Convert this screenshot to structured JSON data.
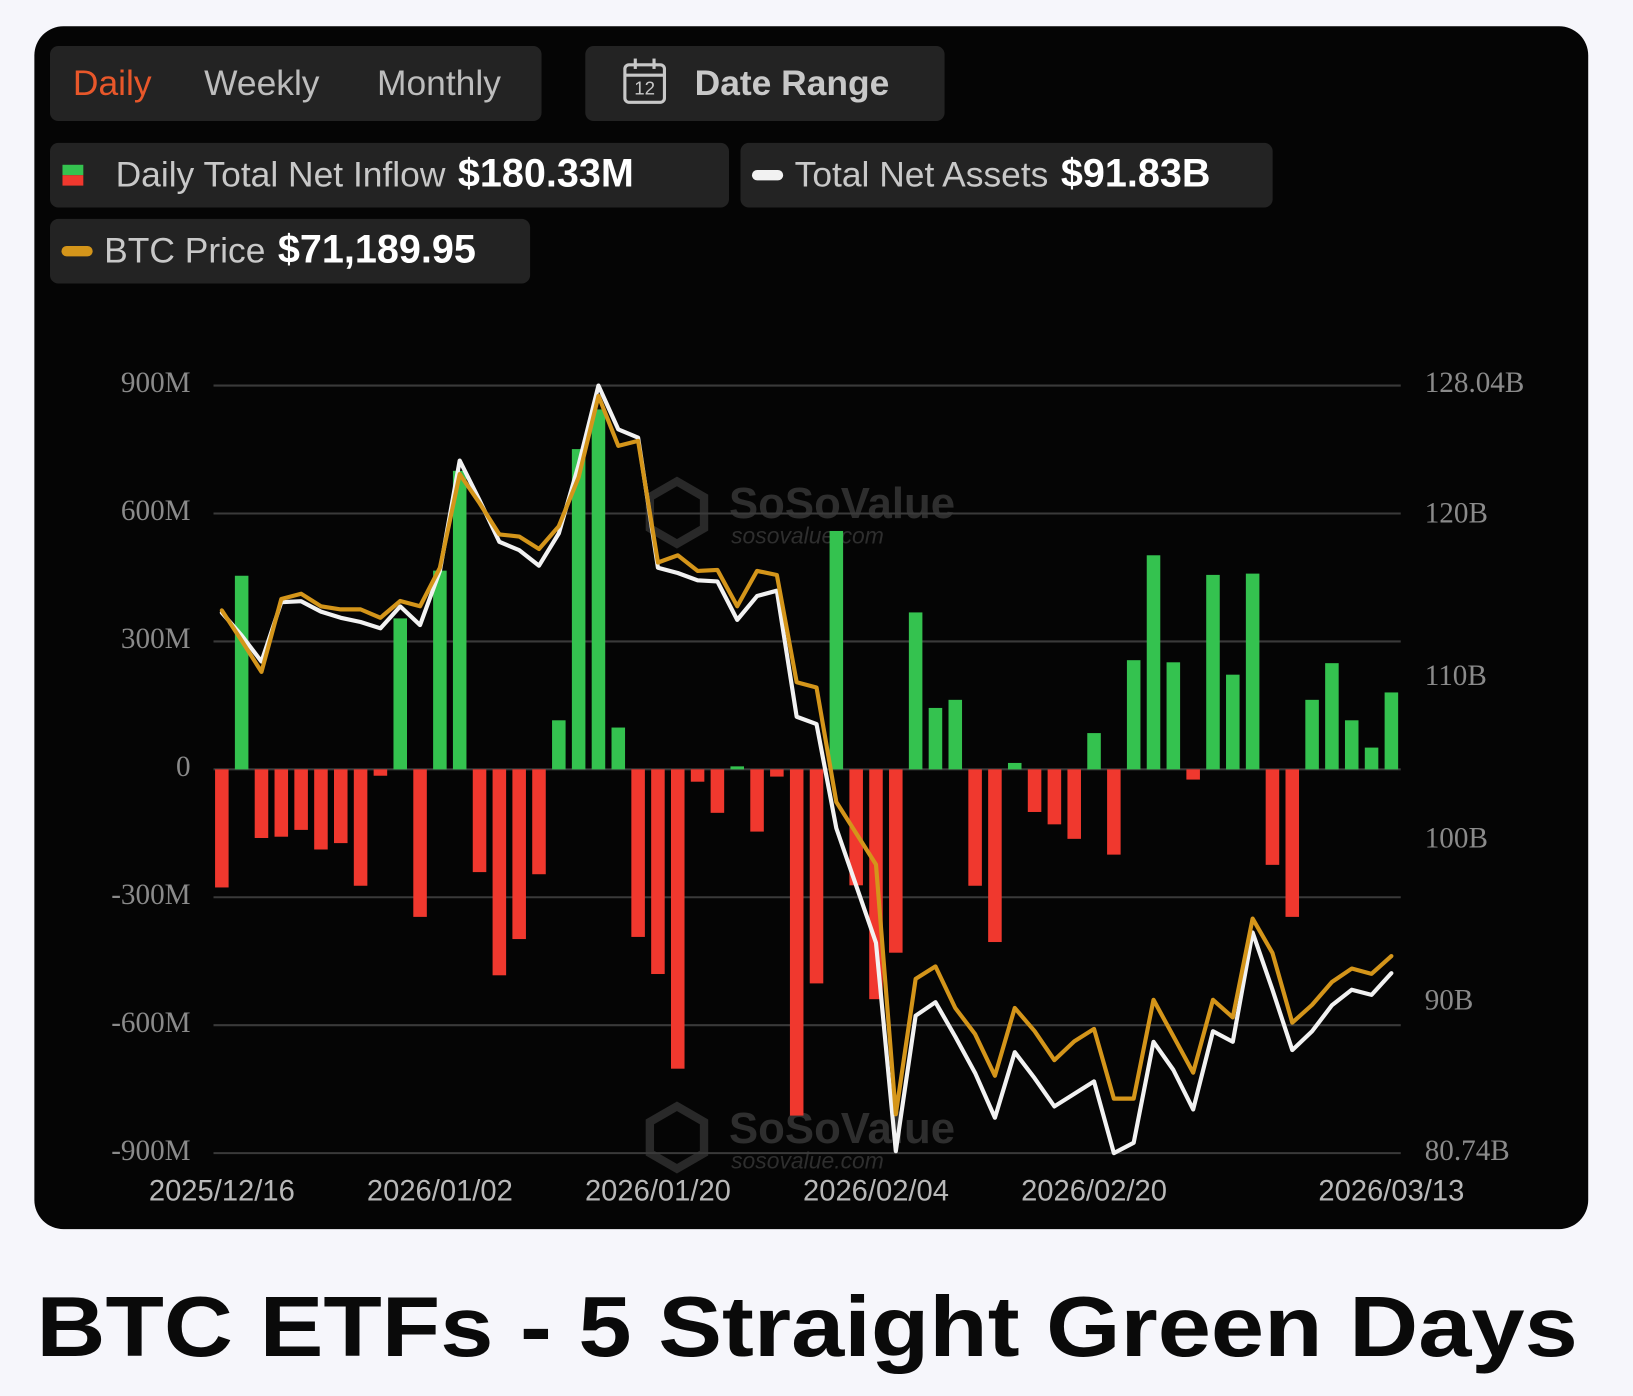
{
  "tabs": [
    "Daily",
    "Weekly",
    "Monthly"
  ],
  "active_tab": 0,
  "date_range": {
    "icon_text": "12",
    "label": "Date Range"
  },
  "watermark": {
    "brand": "SoSoValue",
    "url": "sosovalue.com"
  },
  "caption": "BTC ETFs - 5 Straight Green Days",
  "chart_data": {
    "type": "bar",
    "categories": [
      "2025/12/16",
      null,
      null,
      null,
      null,
      null,
      null,
      null,
      null,
      null,
      null,
      "2026/01/02",
      null,
      null,
      null,
      null,
      null,
      null,
      null,
      null,
      null,
      null,
      "2026/01/20",
      null,
      null,
      null,
      null,
      null,
      null,
      null,
      null,
      null,
      null,
      "2026/02/04",
      null,
      null,
      null,
      null,
      null,
      null,
      null,
      null,
      null,
      null,
      "2026/02/20",
      null,
      null,
      null,
      null,
      null,
      null,
      null,
      null,
      null,
      null,
      null,
      null,
      null,
      null,
      "2026/03/13"
    ],
    "series": [
      {
        "name": "Daily Total Net Inflow",
        "type": "bar",
        "color": "#34c24f",
        "negative_color": "#f0382e",
        "current_label": "$180.33M",
        "values": [
          -277,
          454,
          -161,
          -158,
          -142,
          -188,
          -173,
          -273,
          -15,
          354,
          -346,
          466,
          700,
          -241,
          -483,
          -398,
          -246,
          115,
          751,
          844,
          98,
          -393,
          -480,
          -702,
          -29,
          -102,
          7,
          -146,
          -17,
          -812,
          -502,
          559,
          -272,
          -539,
          -430,
          368,
          144,
          163,
          -273,
          -405,
          15,
          -100,
          -129,
          -163,
          85,
          -200,
          256,
          502,
          251,
          -24,
          456,
          222,
          459,
          -224,
          -346,
          163,
          249,
          115,
          51,
          180.33
        ]
      },
      {
        "name": "Total Net Assets",
        "type": "line",
        "axis": "y2",
        "color": "#f2f2f2",
        "current_label": "$91.83B",
        "values": [
          114.05,
          112.64,
          111.03,
          114.69,
          114.75,
          114.11,
          113.73,
          113.47,
          113.08,
          114.43,
          113.28,
          116.62,
          123.42,
          120.98,
          118.41,
          117.9,
          116.94,
          118.93,
          123.16,
          128.04,
          125.34,
          124.83,
          116.81,
          116.49,
          116.04,
          115.97,
          113.6,
          115.07,
          115.4,
          107.63,
          107.18,
          100.76,
          97.23,
          93.7,
          80.86,
          89.21,
          90.04,
          87.92,
          85.68,
          82.92,
          86.96,
          85.36,
          83.62,
          84.39,
          85.16,
          80.74,
          81.38,
          87.6,
          85.87,
          83.43,
          88.25,
          87.6,
          94.34,
          90.81,
          87.09,
          88.25,
          89.85,
          90.81,
          90.49,
          91.83
        ]
      },
      {
        "name": "BTC Price",
        "type": "line",
        "axis": "y3",
        "color": "#d4951a",
        "current_label": "$71,189.95",
        "values": [
          88890,
          87340,
          85740,
          89470,
          89740,
          89100,
          88940,
          88940,
          88510,
          89370,
          89100,
          91070,
          95870,
          94380,
          92780,
          92670,
          92030,
          93200,
          95710,
          99870,
          97310,
          97570,
          91340,
          91710,
          90910,
          90960,
          89100,
          90910,
          90700,
          85210,
          84940,
          79080,
          77480,
          75880,
          63090,
          70020,
          70660,
          68530,
          67190,
          65060,
          68530,
          67350,
          65860,
          66820,
          67460,
          63890,
          63890,
          68950,
          67090,
          65220,
          68950,
          68050,
          73110,
          71350,
          67780,
          68690,
          69860,
          70550,
          70280,
          71189.95
        ]
      }
    ],
    "ylim": [
      -900,
      900
    ],
    "yticks": [
      {
        "value": -900,
        "label": "-900M"
      },
      {
        "value": -600,
        "label": "-600M"
      },
      {
        "value": -300,
        "label": "-300M"
      },
      0,
      {
        "value": 300,
        "label": "300M"
      },
      {
        "value": 600,
        "label": "600M"
      },
      {
        "value": 900,
        "label": "900M"
      }
    ],
    "y2lim": [
      80.74,
      128.04
    ],
    "y2ticks": [
      {
        "value": 80.74,
        "label": "80.74B"
      },
      {
        "value": 90,
        "label": "90B"
      },
      {
        "value": 100,
        "label": "100B"
      },
      {
        "value": 110,
        "label": "110B"
      },
      {
        "value": 120,
        "label": "120B"
      },
      {
        "value": 128.04,
        "label": "128.04B"
      }
    ],
    "y3lim": [
      61100,
      100400
    ],
    "grid": true
  }
}
